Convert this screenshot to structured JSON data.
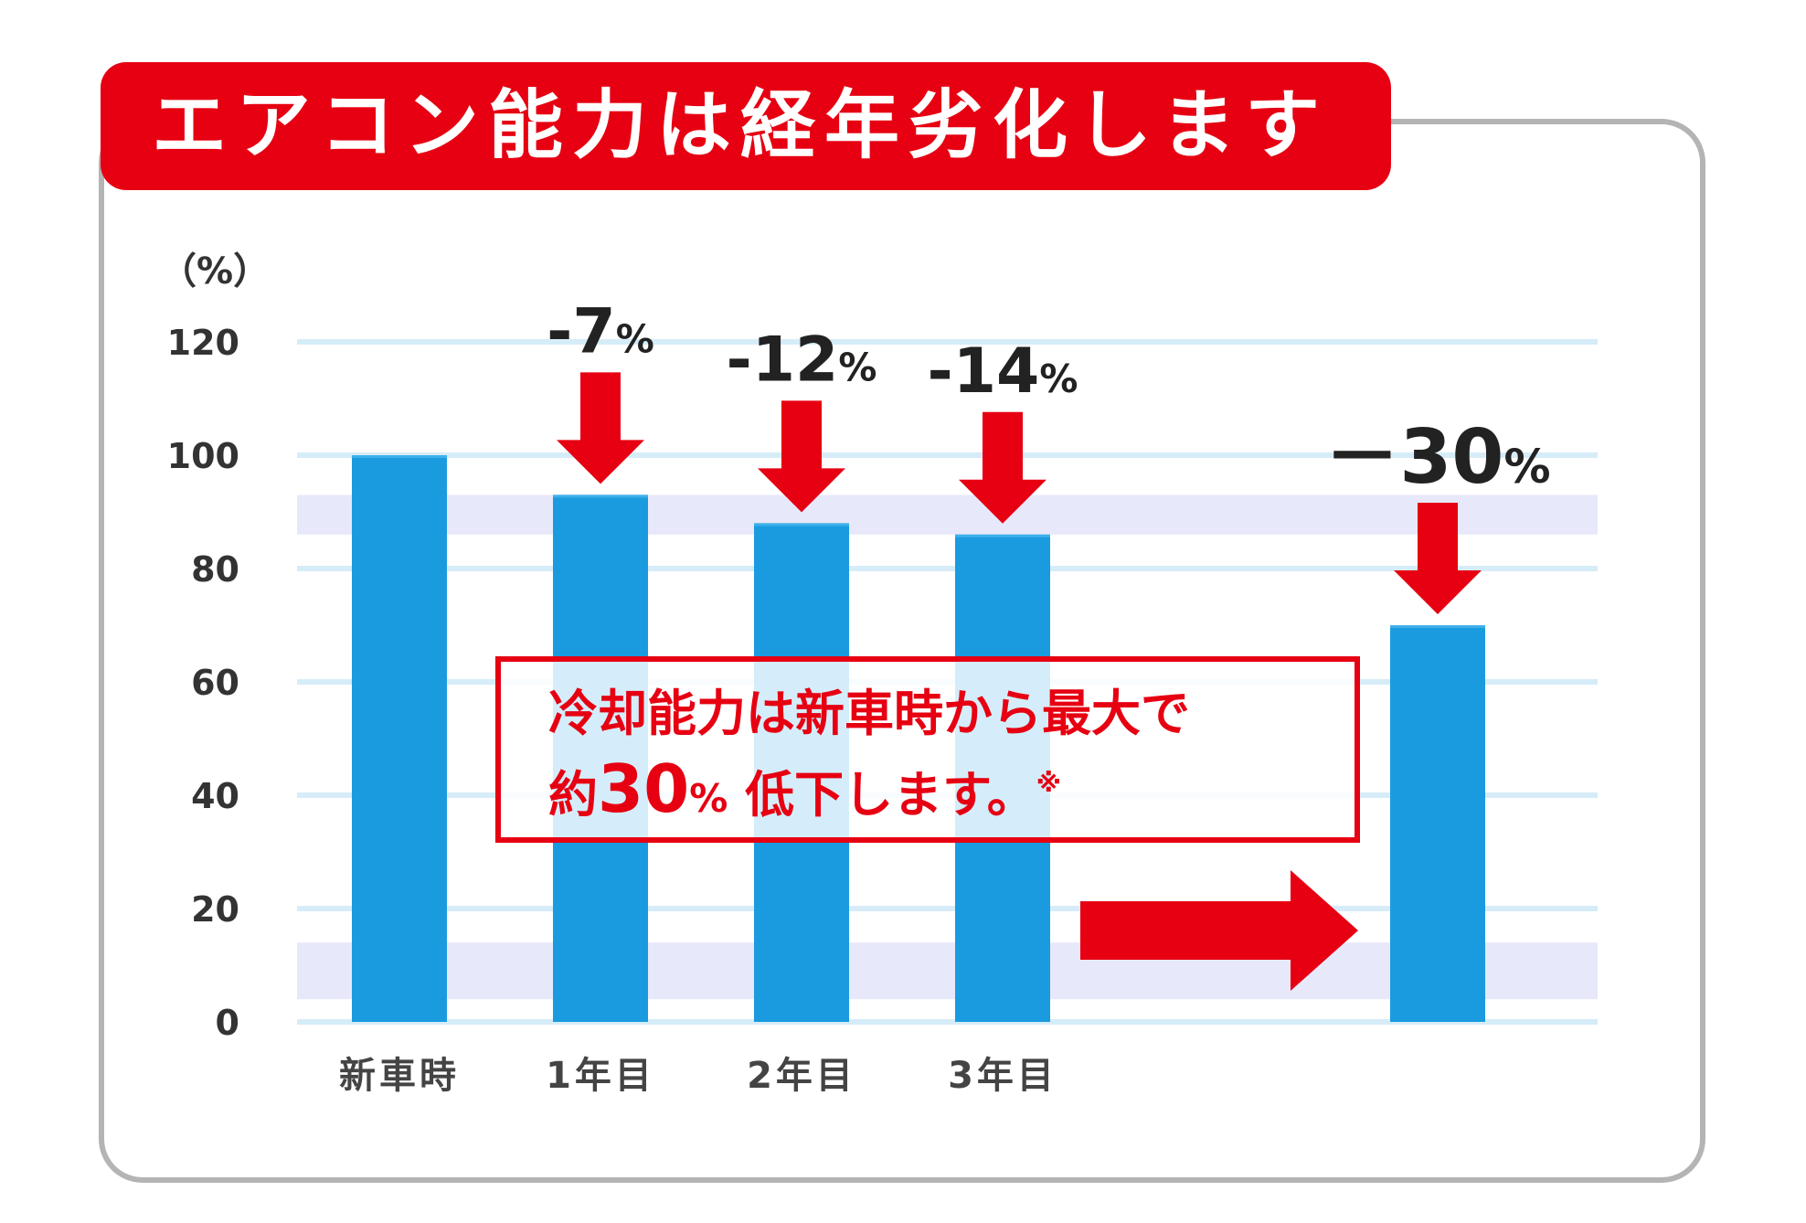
{
  "title": "エアコン能力は経年劣化します",
  "callout": {
    "line1": "冷却能力は新車時から最大で",
    "line2_prefix": "約",
    "line2_number": "30",
    "line2_percent": "%",
    "line2_suffix": "低下します。",
    "note_mark": "※"
  },
  "colors": {
    "banner": "#e60012",
    "bar": "#1a9be0",
    "arrow": "#e60012",
    "grid": "#d6ecf8",
    "band": "#e8e8fb"
  },
  "chart_data": {
    "type": "bar",
    "unit_label": "（%）",
    "categories": [
      "新車時",
      "1年目",
      "2年目",
      "3年目",
      ""
    ],
    "values": [
      100,
      93,
      88,
      86,
      70
    ],
    "ylim": [
      0,
      120
    ],
    "yticks": [
      0,
      20,
      40,
      60,
      80,
      100,
      120
    ],
    "grid": true,
    "annotations": [
      {
        "category_index": 1,
        "number": "-7",
        "percent": "%"
      },
      {
        "category_index": 2,
        "number": "-12",
        "percent": "%"
      },
      {
        "category_index": 3,
        "number": "-14",
        "percent": "%"
      },
      {
        "category_index": 4,
        "number": "－30",
        "percent": "%"
      }
    ]
  }
}
